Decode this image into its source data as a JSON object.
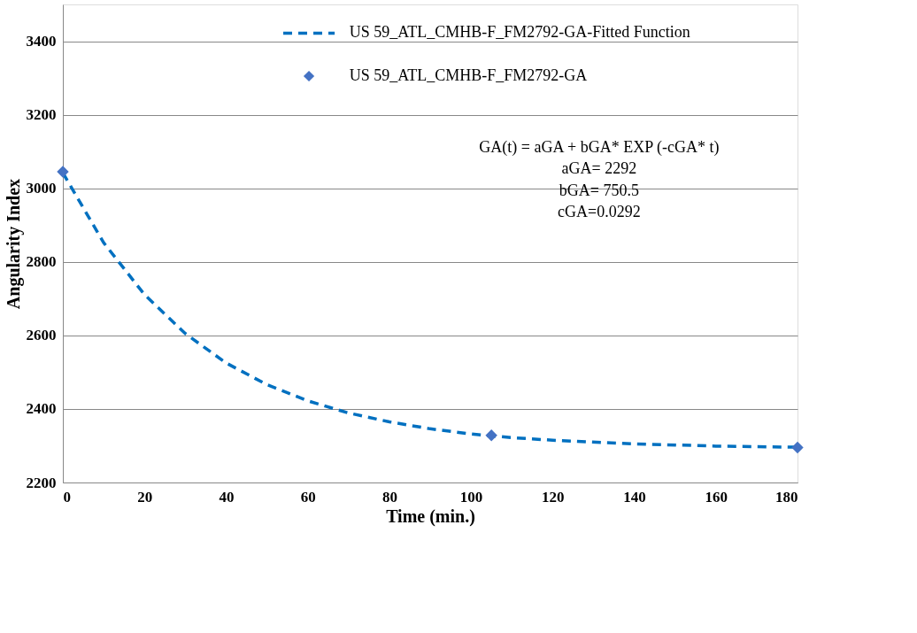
{
  "chart_data": {
    "type": "scatter",
    "xlabel": "Time (min.)",
    "ylabel": "Angularity Index",
    "xlim": [
      0,
      180
    ],
    "xticks": [
      0,
      20,
      40,
      60,
      80,
      100,
      120,
      140,
      160,
      180
    ],
    "ylim": [
      2200,
      3500
    ],
    "yticks": [
      2200,
      2400,
      2600,
      2800,
      3000,
      3200,
      3400
    ],
    "grid": "y",
    "legend": "top right",
    "series": [
      {
        "name": "US 59_ATL_CMHB-F_FM2792-GA-Fitted Function",
        "type": "line",
        "line_style": "dashed",
        "marker": "none",
        "color": "#0070c0",
        "x": [
          0,
          10,
          20,
          30,
          40,
          50,
          60,
          70,
          80,
          90,
          100,
          110,
          120,
          140,
          160,
          180
        ],
        "values": [
          3042,
          2852,
          2711,
          2605,
          2525,
          2466,
          2422,
          2389,
          2365,
          2346,
          2332,
          2322,
          2315,
          2305,
          2299,
          2296
        ]
      },
      {
        "name": "US 59_ATL_CMHB-F_FM2792-GA",
        "type": "scatter",
        "marker": "diamond",
        "color": "#4472c4",
        "x": [
          0,
          105,
          180
        ],
        "values": [
          3045,
          2328,
          2295
        ]
      }
    ],
    "annotations": [
      "GA(t) = aGA + bGA* EXP (-cGA* t)",
      "aGA= 2292",
      "bGA= 750.5",
      "cGA=0.0292"
    ]
  }
}
